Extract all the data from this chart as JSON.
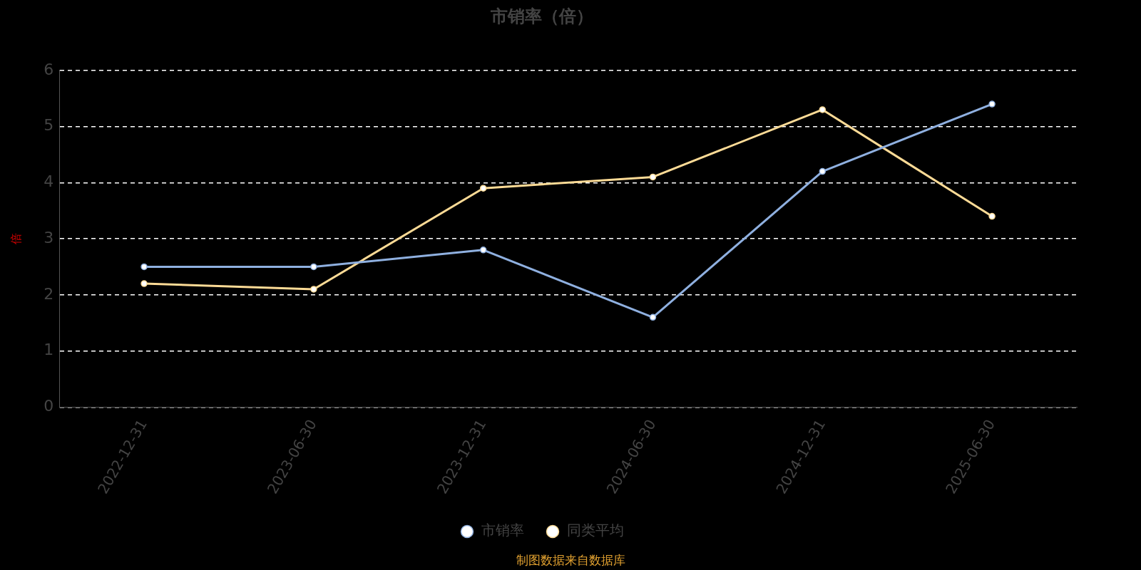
{
  "chart_data": {
    "type": "line",
    "title": "市销率（倍）",
    "ylabel": "倍",
    "categories": [
      "2022-12-31",
      "2023-06-30",
      "2023-12-31",
      "2024-06-30",
      "2024-12-31",
      "2025-06-30"
    ],
    "series": [
      {
        "name": "市销率",
        "color": "#8fb0e0",
        "values": [
          2.5,
          2.5,
          2.8,
          1.6,
          4.2,
          5.4
        ]
      },
      {
        "name": "同类平均",
        "color": "#fddb96",
        "values": [
          2.2,
          2.1,
          3.9,
          4.1,
          5.3,
          3.4
        ]
      }
    ],
    "ylim": [
      0,
      6
    ],
    "yticks": [
      0,
      1,
      2,
      3,
      4,
      5,
      6
    ],
    "grid": "y",
    "legend": "bottom",
    "marker": "circle",
    "line_style": "solid",
    "annotations": [
      "制图数据来自数据库"
    ]
  }
}
